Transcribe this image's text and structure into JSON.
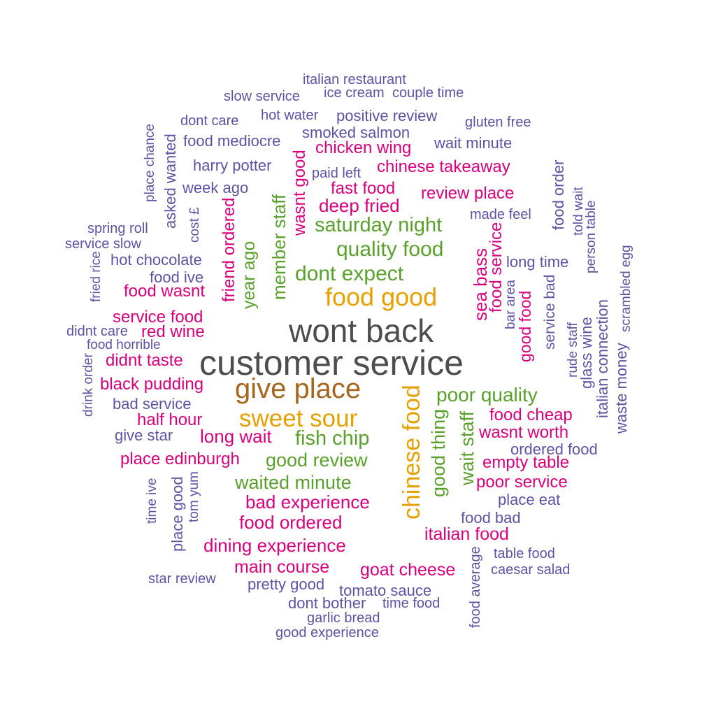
{
  "palette": {
    "c1": "#4d4d4d",
    "c2": "#a6661c",
    "c3": "#e6a100",
    "c4": "#5aa02c",
    "c5": "#d9007e",
    "c6": "#5e52a3"
  },
  "words": [
    {
      "text": "customer service",
      "color": "c1"
    },
    {
      "text": "wont back",
      "color": "c1"
    },
    {
      "text": "give place",
      "color": "c2"
    },
    {
      "text": "food good",
      "color": "c3"
    },
    {
      "text": "sweet sour",
      "color": "c3"
    },
    {
      "text": "chinese food",
      "color": "c3"
    },
    {
      "text": "dont expect",
      "color": "c4"
    },
    {
      "text": "quality food",
      "color": "c4"
    },
    {
      "text": "saturday night",
      "color": "c4"
    },
    {
      "text": "fish chip",
      "color": "c4"
    },
    {
      "text": "poor quality",
      "color": "c4"
    },
    {
      "text": "good review",
      "color": "c4"
    },
    {
      "text": "waited minute",
      "color": "c4"
    },
    {
      "text": "good thing",
      "color": "c4"
    },
    {
      "text": "wait staff",
      "color": "c4"
    },
    {
      "text": "member staff",
      "color": "c4"
    },
    {
      "text": "year ago",
      "color": "c4"
    },
    {
      "text": "wasnt good",
      "color": "c5"
    },
    {
      "text": "friend ordered",
      "color": "c5"
    },
    {
      "text": "deep fried",
      "color": "c5"
    },
    {
      "text": "fast food",
      "color": "c5"
    },
    {
      "text": "chicken wing",
      "color": "c5"
    },
    {
      "text": "chinese takeaway",
      "color": "c5"
    },
    {
      "text": "review place",
      "color": "c5"
    },
    {
      "text": "food wasnt",
      "color": "c5"
    },
    {
      "text": "service food",
      "color": "c5"
    },
    {
      "text": "red wine",
      "color": "c5"
    },
    {
      "text": "didnt taste",
      "color": "c5"
    },
    {
      "text": "black pudding",
      "color": "c5"
    },
    {
      "text": "half hour",
      "color": "c5"
    },
    {
      "text": "long wait",
      "color": "c5"
    },
    {
      "text": "place edinburgh",
      "color": "c5"
    },
    {
      "text": "bad experience",
      "color": "c5"
    },
    {
      "text": "food ordered",
      "color": "c5"
    },
    {
      "text": "dining experience",
      "color": "c5"
    },
    {
      "text": "main course",
      "color": "c5"
    },
    {
      "text": "goat cheese",
      "color": "c5"
    },
    {
      "text": "italian food",
      "color": "c5"
    },
    {
      "text": "poor service",
      "color": "c5"
    },
    {
      "text": "empty table",
      "color": "c5"
    },
    {
      "text": "wasnt worth",
      "color": "c5"
    },
    {
      "text": "food cheap",
      "color": "c5"
    },
    {
      "text": "sea bass",
      "color": "c5"
    },
    {
      "text": "food service",
      "color": "c5"
    },
    {
      "text": "good food",
      "color": "c5"
    },
    {
      "text": "italian restaurant",
      "color": "c6"
    },
    {
      "text": "slow service",
      "color": "c6"
    },
    {
      "text": "ice cream",
      "color": "c6"
    },
    {
      "text": "couple time",
      "color": "c6"
    },
    {
      "text": "dont care",
      "color": "c6"
    },
    {
      "text": "hot water",
      "color": "c6"
    },
    {
      "text": "positive review",
      "color": "c6"
    },
    {
      "text": "gluten free",
      "color": "c6"
    },
    {
      "text": "smoked salmon",
      "color": "c6"
    },
    {
      "text": "food mediocre",
      "color": "c6"
    },
    {
      "text": "wait minute",
      "color": "c6"
    },
    {
      "text": "harry potter",
      "color": "c6"
    },
    {
      "text": "paid left",
      "color": "c6"
    },
    {
      "text": "week ago",
      "color": "c6"
    },
    {
      "text": "made feel",
      "color": "c6"
    },
    {
      "text": "spring roll",
      "color": "c6"
    },
    {
      "text": "service slow",
      "color": "c6"
    },
    {
      "text": "hot chocolate",
      "color": "c6"
    },
    {
      "text": "food ive",
      "color": "c6"
    },
    {
      "text": "long time",
      "color": "c6"
    },
    {
      "text": "didnt care",
      "color": "c6"
    },
    {
      "text": "food horrible",
      "color": "c6"
    },
    {
      "text": "bad service",
      "color": "c6"
    },
    {
      "text": "give star",
      "color": "c6"
    },
    {
      "text": "ordered food",
      "color": "c6"
    },
    {
      "text": "place eat",
      "color": "c6"
    },
    {
      "text": "food bad",
      "color": "c6"
    },
    {
      "text": "table food",
      "color": "c6"
    },
    {
      "text": "caesar salad",
      "color": "c6"
    },
    {
      "text": "star review",
      "color": "c6"
    },
    {
      "text": "pretty good",
      "color": "c6"
    },
    {
      "text": "tomato sauce",
      "color": "c6"
    },
    {
      "text": "dont bother",
      "color": "c6"
    },
    {
      "text": "time food",
      "color": "c6"
    },
    {
      "text": "garlic bread",
      "color": "c6"
    },
    {
      "text": "good experience",
      "color": "c6"
    },
    {
      "text": "place chance",
      "color": "c6"
    },
    {
      "text": "asked wanted",
      "color": "c6"
    },
    {
      "text": "cost £",
      "color": "c6"
    },
    {
      "text": "fried rice",
      "color": "c6"
    },
    {
      "text": "drink order",
      "color": "c6"
    },
    {
      "text": "time ive",
      "color": "c6"
    },
    {
      "text": "place good",
      "color": "c6"
    },
    {
      "text": "tom yum",
      "color": "c6"
    },
    {
      "text": "food average",
      "color": "c6"
    },
    {
      "text": "bar area",
      "color": "c6"
    },
    {
      "text": "service bad",
      "color": "c6"
    },
    {
      "text": "food order",
      "color": "c6"
    },
    {
      "text": "told wait",
      "color": "c6"
    },
    {
      "text": "person table",
      "color": "c6"
    },
    {
      "text": "scrambled egg",
      "color": "c6"
    },
    {
      "text": "rude staff",
      "color": "c6"
    },
    {
      "text": "glass wine",
      "color": "c6"
    },
    {
      "text": "italian connection",
      "color": "c6"
    },
    {
      "text": "waste money",
      "color": "c6"
    }
  ]
}
